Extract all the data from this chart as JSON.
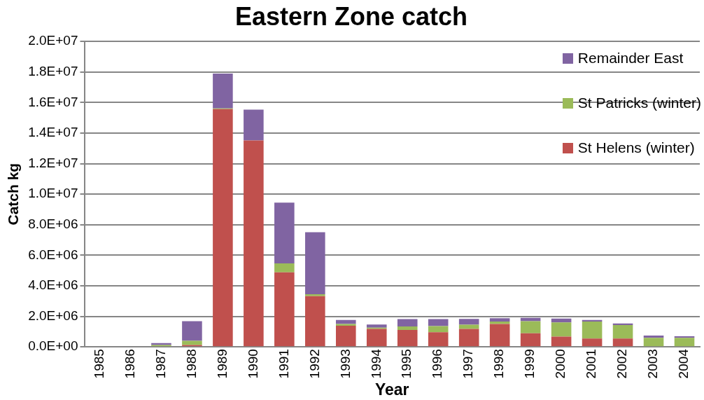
{
  "chart_data": {
    "type": "bar",
    "title": "Eastern Zone catch",
    "xlabel": "Year",
    "ylabel": "Catch kg",
    "categories": [
      "1985",
      "1986",
      "1987",
      "1988",
      "1989",
      "1990",
      "1991",
      "1992",
      "1993",
      "1994",
      "1995",
      "1996",
      "1997",
      "1998",
      "1999",
      "2000",
      "2001",
      "2002",
      "2003",
      "2004"
    ],
    "stacked": true,
    "series": [
      {
        "name": "St Helens (winter)",
        "color": "#c0504d",
        "values": [
          0,
          0,
          0,
          120000,
          15570000,
          13520000,
          4880000,
          3320000,
          1380000,
          1180000,
          1110000,
          960000,
          1180000,
          1500000,
          890000,
          670000,
          550000,
          550000,
          0,
          0
        ]
      },
      {
        "name": "St Patricks (winter)",
        "color": "#9bbb59",
        "values": [
          0,
          0,
          120000,
          280000,
          50000,
          0,
          590000,
          130000,
          120000,
          80000,
          230000,
          400000,
          270000,
          160000,
          790000,
          930000,
          1110000,
          880000,
          590000,
          590000
        ]
      },
      {
        "name": "Remainder East",
        "color": "#8064a2",
        "values": [
          0,
          0,
          130000,
          1280000,
          2280000,
          2020000,
          3970000,
          4060000,
          260000,
          200000,
          480000,
          460000,
          380000,
          210000,
          220000,
          250000,
          100000,
          100000,
          150000,
          100000
        ]
      }
    ],
    "ylim": [
      0,
      20000000
    ],
    "yticks": [
      {
        "value": 0,
        "label": "0.0E+00"
      },
      {
        "value": 2000000,
        "label": "2.0E+06"
      },
      {
        "value": 4000000,
        "label": "4.0E+06"
      },
      {
        "value": 6000000,
        "label": "6.0E+06"
      },
      {
        "value": 8000000,
        "label": "8.0E+06"
      },
      {
        "value": 10000000,
        "label": "1.0E+07"
      },
      {
        "value": 12000000,
        "label": "1.2E+07"
      },
      {
        "value": 14000000,
        "label": "1.4E+07"
      },
      {
        "value": 16000000,
        "label": "1.6E+07"
      },
      {
        "value": 18000000,
        "label": "1.8E+07"
      },
      {
        "value": 20000000,
        "label": "2.0E+07"
      }
    ],
    "grid": "y",
    "legend": "top right"
  }
}
